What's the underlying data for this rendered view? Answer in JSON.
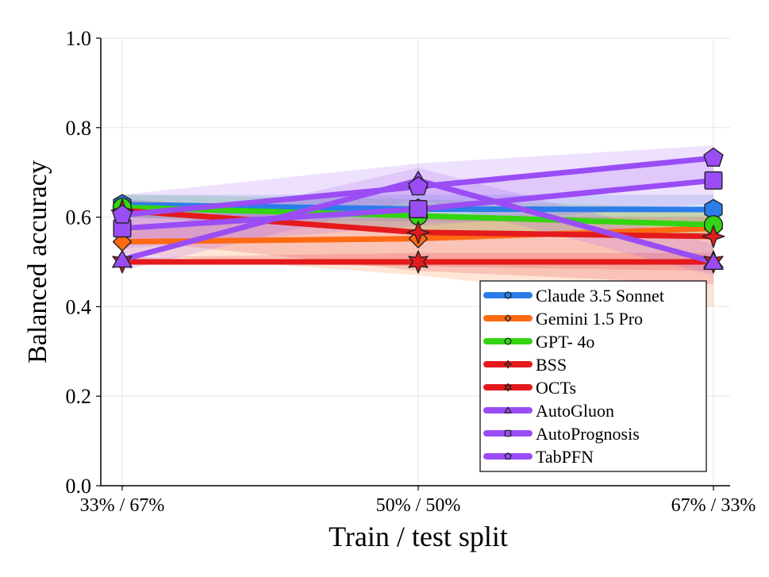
{
  "chart_data": {
    "type": "line",
    "title": "",
    "xlabel": "Train / test split",
    "ylabel": "Balanced accuracy",
    "categories": [
      "33% / 67%",
      "50% / 50%",
      "67% / 33%"
    ],
    "ylim": [
      0.0,
      1.0
    ],
    "yticks": [
      "0.0",
      "0.2",
      "0.4",
      "0.6",
      "0.8",
      "1.0"
    ],
    "yticks_values": [
      0.0,
      0.2,
      0.4,
      0.6,
      0.8,
      1.0
    ],
    "grid": true,
    "legend_position": "bottom-right",
    "series": [
      {
        "name": "Claude 3.5 Sonnet",
        "color": "#2b7de9",
        "marker": "hexagon",
        "values": [
          0.628,
          0.618,
          0.617
        ],
        "band_low": [
          0.6,
          0.59,
          0.59
        ],
        "band_high": [
          0.65,
          0.65,
          0.65
        ]
      },
      {
        "name": "Gemini 1.5 Pro",
        "color": "#ff6a13",
        "marker": "diamond",
        "values": [
          0.545,
          0.552,
          0.575
        ],
        "band_low": [
          0.52,
          0.47,
          0.4
        ],
        "band_high": [
          0.58,
          0.6,
          0.62
        ]
      },
      {
        "name": "GPT- 4o",
        "color": "#33d411",
        "marker": "circle",
        "values": [
          0.622,
          0.603,
          0.583
        ],
        "band_low": [
          0.6,
          0.57,
          0.55
        ],
        "band_high": [
          0.65,
          0.64,
          0.62
        ]
      },
      {
        "name": "BSS",
        "color": "#e41a1c",
        "marker": "star4",
        "values": [
          0.615,
          0.566,
          0.557
        ],
        "band_low": [
          0.55,
          0.48,
          0.45
        ],
        "band_high": [
          0.64,
          0.6,
          0.6
        ]
      },
      {
        "name": "OCTs",
        "color": "#e41a1c",
        "marker": "star6",
        "values": [
          0.5,
          0.5,
          0.5
        ],
        "band_low": [
          0.5,
          0.49,
          0.48
        ],
        "band_high": [
          0.51,
          0.52,
          0.52
        ]
      },
      {
        "name": "AutoGluon",
        "color": "#9a4df5",
        "marker": "triangle",
        "values": [
          0.505,
          0.682,
          0.5
        ],
        "band_low": [
          0.48,
          0.64,
          0.47
        ],
        "band_high": [
          0.56,
          0.71,
          0.54
        ]
      },
      {
        "name": "AutoPrognosis",
        "color": "#9a4df5",
        "marker": "square",
        "values": [
          0.575,
          0.618,
          0.682
        ],
        "band_low": [
          0.53,
          0.58,
          0.63
        ],
        "band_high": [
          0.61,
          0.66,
          0.73
        ]
      },
      {
        "name": "TabPFN",
        "color": "#9a4df5",
        "marker": "pentagon",
        "values": [
          0.605,
          0.668,
          0.732
        ],
        "band_low": [
          0.57,
          0.62,
          0.69
        ],
        "band_high": [
          0.65,
          0.72,
          0.76
        ]
      }
    ]
  }
}
